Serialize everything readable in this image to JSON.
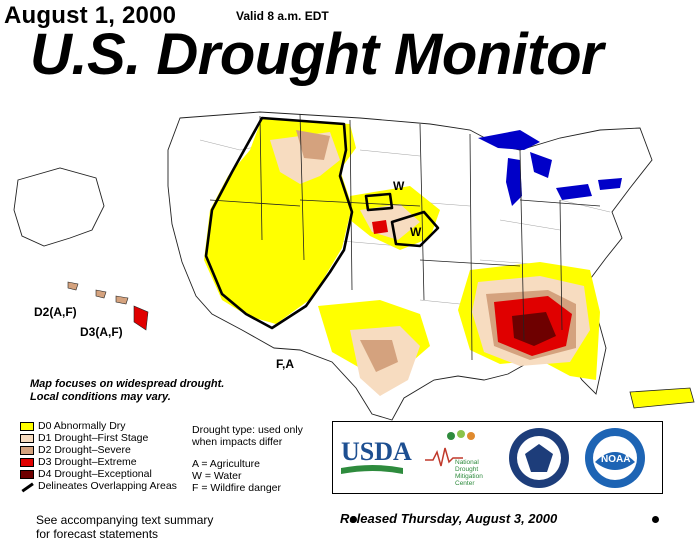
{
  "header": {
    "date": "August 1, 2000",
    "valid": "Valid 8 a.m. EDT",
    "title": "U.S. Drought Monitor"
  },
  "map": {
    "region": "United States (contiguous, Alaska, Hawaii, Puerto Rico)",
    "labels": {
      "w_north": "W",
      "w_south": "W",
      "fa": "F,A",
      "hawaii_d2": "D2(A,F)",
      "hawaii_d3": "D3(A,F)"
    },
    "colors": {
      "d0": "#ffff00",
      "d1": "#fcd37f",
      "d2": "#d8a074",
      "d3": "#e60000",
      "d4": "#730000",
      "water": "#0000c8"
    }
  },
  "focus_note": {
    "line1": "Map focuses on widespread drought.",
    "line2": "Local conditions may vary."
  },
  "legend": {
    "items": [
      {
        "label": "D0 Abnormally Dry",
        "color": "#ffff00"
      },
      {
        "label": "D1 Drought–First Stage",
        "color": "#f7dcc0"
      },
      {
        "label": "D2 Drought–Severe",
        "color": "#d4a27e"
      },
      {
        "label": "D3 Drought–Extreme",
        "color": "#e00000"
      },
      {
        "label": "D4 Drought–Exceptional",
        "color": "#6e0000"
      }
    ],
    "line_item": "Delineates Overlapping Areas"
  },
  "drought_type": {
    "line1": "Drought type: used only",
    "line2": "when impacts differ",
    "a": "A = Agriculture",
    "w": "W = Water",
    "f": "F = Wildfire danger"
  },
  "logos": {
    "usda": "USDA",
    "ndmc_1": "National",
    "ndmc_2": "Drought",
    "ndmc_3": "Mitigation",
    "ndmc_4": "Center",
    "noaa": "NOAA"
  },
  "footer": {
    "released": "Released Thursday, August 3, 2000",
    "see_line1": "See accompanying text summary",
    "see_line2": "for forecast statements"
  }
}
